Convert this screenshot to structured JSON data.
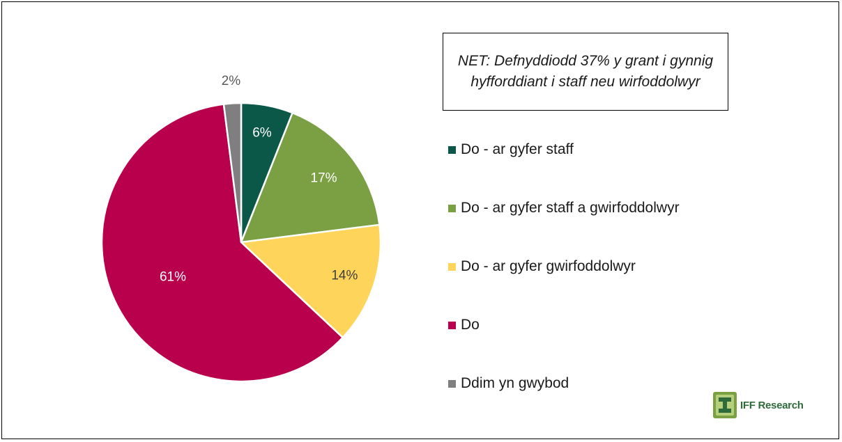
{
  "chart_data": {
    "type": "pie",
    "title": "",
    "annotation": "NET: Defnyddiodd 37% y grant i gynnig hyfforddiant i staff neu wirfoddolwyr",
    "legend_position": "right",
    "slices": [
      {
        "name": "Do - ar gyfer staff",
        "value": 6,
        "label": "6%",
        "color": "#0b5849",
        "label_color": "#ffffff"
      },
      {
        "name": "Do - ar gyfer staff a gwirfoddolwyr",
        "value": 17,
        "label": "17%",
        "color": "#7aa043",
        "label_color": "#ffffff"
      },
      {
        "name": "Do - ar gyfer gwirfoddolwyr",
        "value": 14,
        "label": "14%",
        "color": "#ffd45a",
        "label_color": "#404040"
      },
      {
        "name": "Do",
        "value": 61,
        "label": "61%",
        "color": "#b8004c",
        "label_color": "#ffffff"
      },
      {
        "name": "Ddim yn gwybod",
        "value": 2,
        "label": "2%",
        "color": "#7f7f7f",
        "label_color": "#595959"
      }
    ]
  },
  "logo": {
    "text": "IFF Research",
    "color": "#2f6b3a"
  }
}
